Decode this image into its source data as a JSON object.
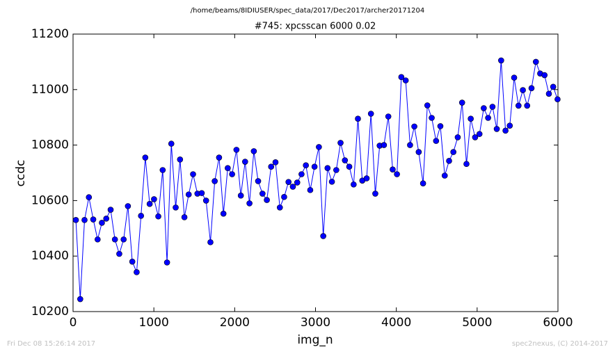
{
  "suptitle": "/home/beams/8IDIUSER/spec_data/2017/Dec2017/archer20171204",
  "footer_left": "Fri Dec 08 15:26:14 2017",
  "footer_right": "spec2nexus, (C) 2014-2017",
  "chart_data": {
    "type": "line",
    "title": "#745: xpcsscan 6000 0.02",
    "xlabel": "img_n",
    "ylabel": "ccdc",
    "color": "#0000ff",
    "markers": true,
    "grid": false,
    "xlim": [
      0,
      6000
    ],
    "xticks": [
      0,
      1000,
      2000,
      3000,
      4000,
      5000,
      6000
    ],
    "ylim": [
      10200,
      11200
    ],
    "yticks": [
      10200,
      10400,
      10600,
      10800,
      11000,
      11200
    ],
    "x": [
      35,
      89,
      142,
      196,
      250,
      304,
      357,
      411,
      465,
      518,
      572,
      626,
      679,
      733,
      787,
      841,
      894,
      948,
      1002,
      1055,
      1109,
      1163,
      1216,
      1270,
      1324,
      1378,
      1431,
      1485,
      1539,
      1592,
      1646,
      1700,
      1753,
      1807,
      1861,
      1914,
      1968,
      2022,
      2076,
      2129,
      2183,
      2237,
      2290,
      2344,
      2398,
      2451,
      2505,
      2559,
      2612,
      2666,
      2720,
      2774,
      2827,
      2881,
      2935,
      2988,
      3042,
      3096,
      3149,
      3203,
      3257,
      3310,
      3364,
      3418,
      3472,
      3525,
      3579,
      3633,
      3686,
      3740,
      3794,
      3847,
      3901,
      3955,
      4008,
      4062,
      4116,
      4170,
      4223,
      4277,
      4331,
      4384,
      4438,
      4492,
      4545,
      4599,
      4653,
      4706,
      4760,
      4814,
      4868,
      4921,
      4975,
      5029,
      5082,
      5136,
      5190,
      5243,
      5297,
      5351,
      5404,
      5458,
      5512,
      5566,
      5619,
      5673,
      5727,
      5780,
      5834,
      5888,
      5941,
      5995
    ],
    "values": [
      10530,
      10245,
      10530,
      10612,
      10532,
      10460,
      10520,
      10535,
      10567,
      10460,
      10408,
      10460,
      10580,
      10380,
      10342,
      10545,
      10755,
      10588,
      10605,
      10543,
      10710,
      10377,
      10805,
      10575,
      10748,
      10540,
      10622,
      10695,
      10625,
      10627,
      10600,
      10450,
      10670,
      10755,
      10553,
      10717,
      10695,
      10783,
      10618,
      10740,
      10590,
      10778,
      10670,
      10625,
      10602,
      10722,
      10738,
      10575,
      10613,
      10667,
      10650,
      10665,
      10695,
      10727,
      10638,
      10722,
      10793,
      10472,
      10717,
      10668,
      10710,
      10808,
      10745,
      10722,
      10658,
      10895,
      10672,
      10680,
      10913,
      10625,
      10798,
      10800,
      10903,
      10712,
      10695,
      11045,
      11033,
      10800,
      10867,
      10775,
      10662,
      10943,
      10898,
      10815,
      10868,
      10690,
      10743,
      10775,
      10828,
      10953,
      10732,
      10895,
      10828,
      10840,
      10933,
      10898,
      10938,
      10858,
      11105,
      10852,
      10870,
      11043,
      10942,
      10998,
      10942,
      11005,
      11100,
      11058,
      11052,
      10985,
      11010,
      10965
    ]
  }
}
